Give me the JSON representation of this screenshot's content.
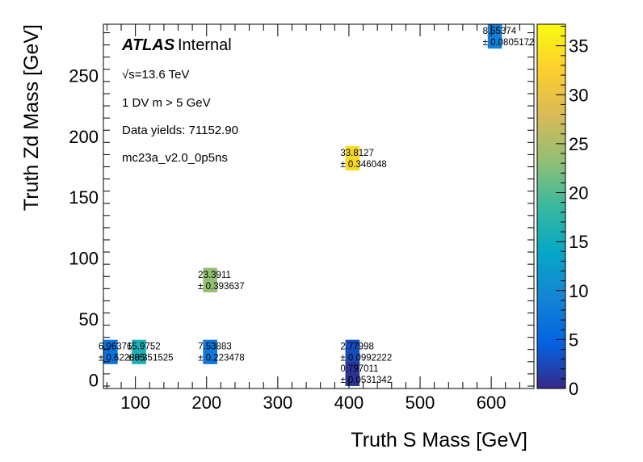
{
  "chart_data": {
    "type": "heatmap",
    "xlabel": "Truth S Mass [GeV]",
    "ylabel": "Truth Zd Mass [GeV]",
    "xlim": [
      55,
      660
    ],
    "ylim": [
      -7,
      292
    ],
    "xticks": [
      "100",
      "200",
      "300",
      "400",
      "500",
      "600"
    ],
    "xtick_values": [
      100,
      200,
      300,
      400,
      500,
      600
    ],
    "yticks": [
      "0",
      "50",
      "100",
      "150",
      "200",
      "250"
    ],
    "ytick_values": [
      0,
      50,
      100,
      150,
      200,
      250
    ],
    "colorbar": {
      "range": [
        0,
        37.2
      ],
      "ticks": [
        "0",
        "5",
        "10",
        "15",
        "20",
        "25",
        "30",
        "35"
      ],
      "tick_values": [
        0,
        5,
        10,
        15,
        20,
        25,
        30,
        35
      ],
      "palette": "parula"
    },
    "bin_size": [
      20,
      20
    ],
    "cells": [
      {
        "x": 65,
        "y": 23,
        "value": 6.96376,
        "value_label": "6.96376",
        "error_label": "± 0.622885"
      },
      {
        "x": 105,
        "y": 23,
        "value": 15.9752,
        "value_label": "15.9752",
        "error_label": "± 0.351525"
      },
      {
        "x": 205,
        "y": 23,
        "value": 7.53883,
        "value_label": "7.53883",
        "error_label": "± 0.223478"
      },
      {
        "x": 205,
        "y": 82,
        "value": 23.3911,
        "value_label": "23.3911",
        "error_label": "± 0.393637"
      },
      {
        "x": 405,
        "y": 23,
        "value": 2.77998,
        "value_label": "2.77998",
        "error_label": "± 0.0992222"
      },
      {
        "x": 405,
        "y": 5,
        "value": 0.797011,
        "value_label": "0.797011",
        "error_label": "± 0.0531342"
      },
      {
        "x": 405,
        "y": 182,
        "value": 33.8127,
        "value_label": "33.8127",
        "error_label": "± 0.346048"
      },
      {
        "x": 605,
        "y": 282,
        "value": 8.55374,
        "value_label": "8.55374",
        "error_label": "± 0.0805172"
      }
    ]
  },
  "annotations": {
    "atlas": "ATLAS",
    "internal": "Internal",
    "energy": "√s=13.6 TeV",
    "selection": "1 DV m > 5 GeV",
    "yields": "Data yields: 71152.90",
    "sample": "mc23a_v2.0_0p5ns"
  }
}
